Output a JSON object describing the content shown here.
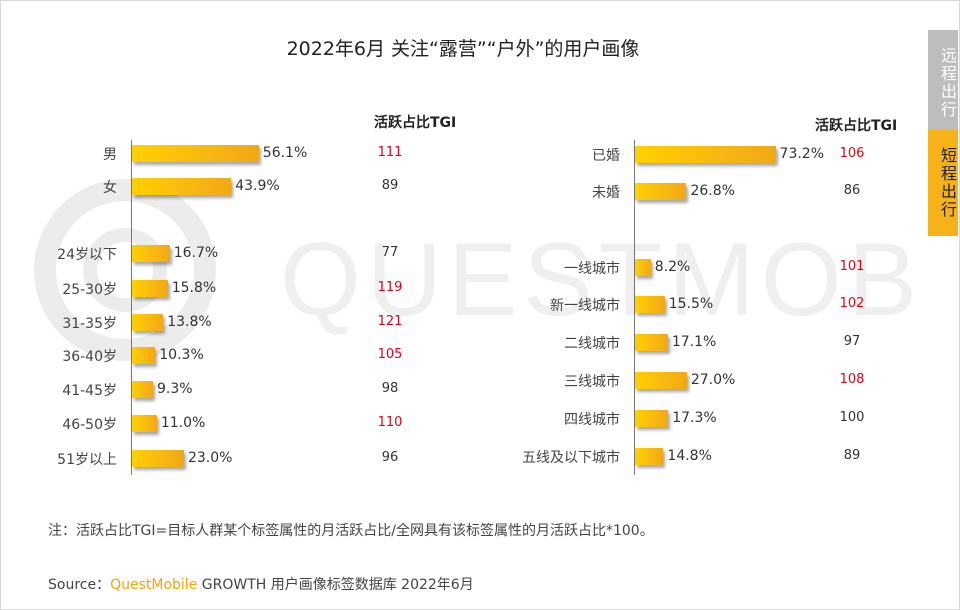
{
  "title": "2022年6月 关注“露营”“户外”的用户画像",
  "side_tabs": {
    "far": "远程出行",
    "near": "短程出行"
  },
  "watermark": "QUESTMOBILE",
  "tgi_header": "活跃占比TGI",
  "colors": {
    "tgi_high": "#e60012",
    "tgi_normal": "#333333",
    "bar_start": "#ffd000",
    "bar_end": "#f2a815",
    "accent": "#f7b21a"
  },
  "chart_data": [
    {
      "type": "bar",
      "orientation": "horizontal",
      "panel": "left",
      "groups": [
        {
          "categories": [
            "男",
            "女"
          ],
          "values": [
            56.1,
            43.9
          ],
          "value_labels": [
            "56.1%",
            "43.9%"
          ],
          "tgi": [
            111,
            89
          ]
        },
        {
          "categories": [
            "24岁以下",
            "25-30岁",
            "31-35岁",
            "36-40岁",
            "41-45岁",
            "46-50岁",
            "51岁以上"
          ],
          "values": [
            16.7,
            15.8,
            13.8,
            10.3,
            9.3,
            11.0,
            23.0
          ],
          "value_labels": [
            "16.7%",
            "15.8%",
            "13.8%",
            "10.3%",
            "9.3%",
            "11.0%",
            "23.0%"
          ],
          "tgi": [
            77,
            119,
            121,
            105,
            98,
            110,
            96
          ]
        }
      ]
    },
    {
      "type": "bar",
      "orientation": "horizontal",
      "panel": "right",
      "groups": [
        {
          "categories": [
            "已婚",
            "未婚"
          ],
          "values": [
            73.2,
            26.8
          ],
          "value_labels": [
            "73.2%",
            "26.8%"
          ],
          "tgi": [
            106,
            86
          ]
        },
        {
          "categories": [
            "一线城市",
            "新一线城市",
            "二线城市",
            "三线城市",
            "四线城市",
            "五线及以下城市"
          ],
          "values": [
            8.2,
            15.5,
            17.1,
            27.0,
            17.3,
            14.8
          ],
          "value_labels": [
            "8.2%",
            "15.5%",
            "17.1%",
            "27.0%",
            "17.3%",
            "14.8%"
          ],
          "tgi": [
            101,
            102,
            97,
            108,
            100,
            89
          ]
        }
      ]
    }
  ],
  "note": "注：活跃占比TGI=目标人群某个标签属性的月活跃占比/全网具有该标签属性的月活跃占比*100。",
  "source": {
    "prefix": "Source：",
    "brand": "QuestMobile",
    "rest": " GROWTH 用户画像标签数据库 2022年6月"
  }
}
